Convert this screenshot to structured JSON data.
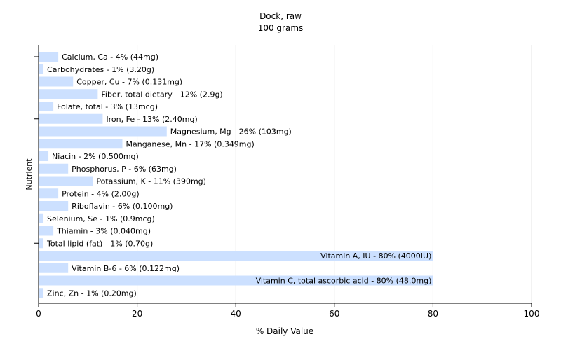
{
  "chart_data": {
    "type": "bar",
    "orientation": "horizontal",
    "title": "Dock, raw",
    "subtitle": "100 grams",
    "xlabel": "% Daily Value",
    "ylabel": "Nutrient",
    "xlim": [
      0,
      100
    ],
    "xticks": [
      0,
      20,
      40,
      60,
      80,
      100
    ],
    "grid": "vertical",
    "bar_color": "#cce0ff",
    "categories": [
      "Calcium, Ca - 4% (44mg)",
      "Carbohydrates - 1% (3.20g)",
      "Copper, Cu - 7% (0.131mg)",
      "Fiber, total dietary - 12% (2.9g)",
      "Folate, total - 3% (13mcg)",
      "Iron, Fe - 13% (2.40mg)",
      "Magnesium, Mg - 26% (103mg)",
      "Manganese, Mn - 17% (0.349mg)",
      "Niacin - 2% (0.500mg)",
      "Phosphorus, P - 6% (63mg)",
      "Potassium, K - 11% (390mg)",
      "Protein - 4% (2.00g)",
      "Riboflavin - 6% (0.100mg)",
      "Selenium, Se - 1% (0.9mcg)",
      "Thiamin - 3% (0.040mg)",
      "Total lipid (fat) - 1% (0.70g)",
      "Vitamin A, IU - 80% (4000IU)",
      "Vitamin B-6 - 6% (0.122mg)",
      "Vitamin C, total ascorbic acid - 80% (48.0mg)",
      "Zinc, Zn - 1% (0.20mg)"
    ],
    "values": [
      4,
      1,
      7,
      12,
      3,
      13,
      26,
      17,
      2,
      6,
      11,
      4,
      6,
      1,
      3,
      1,
      80,
      6,
      80,
      1
    ]
  }
}
